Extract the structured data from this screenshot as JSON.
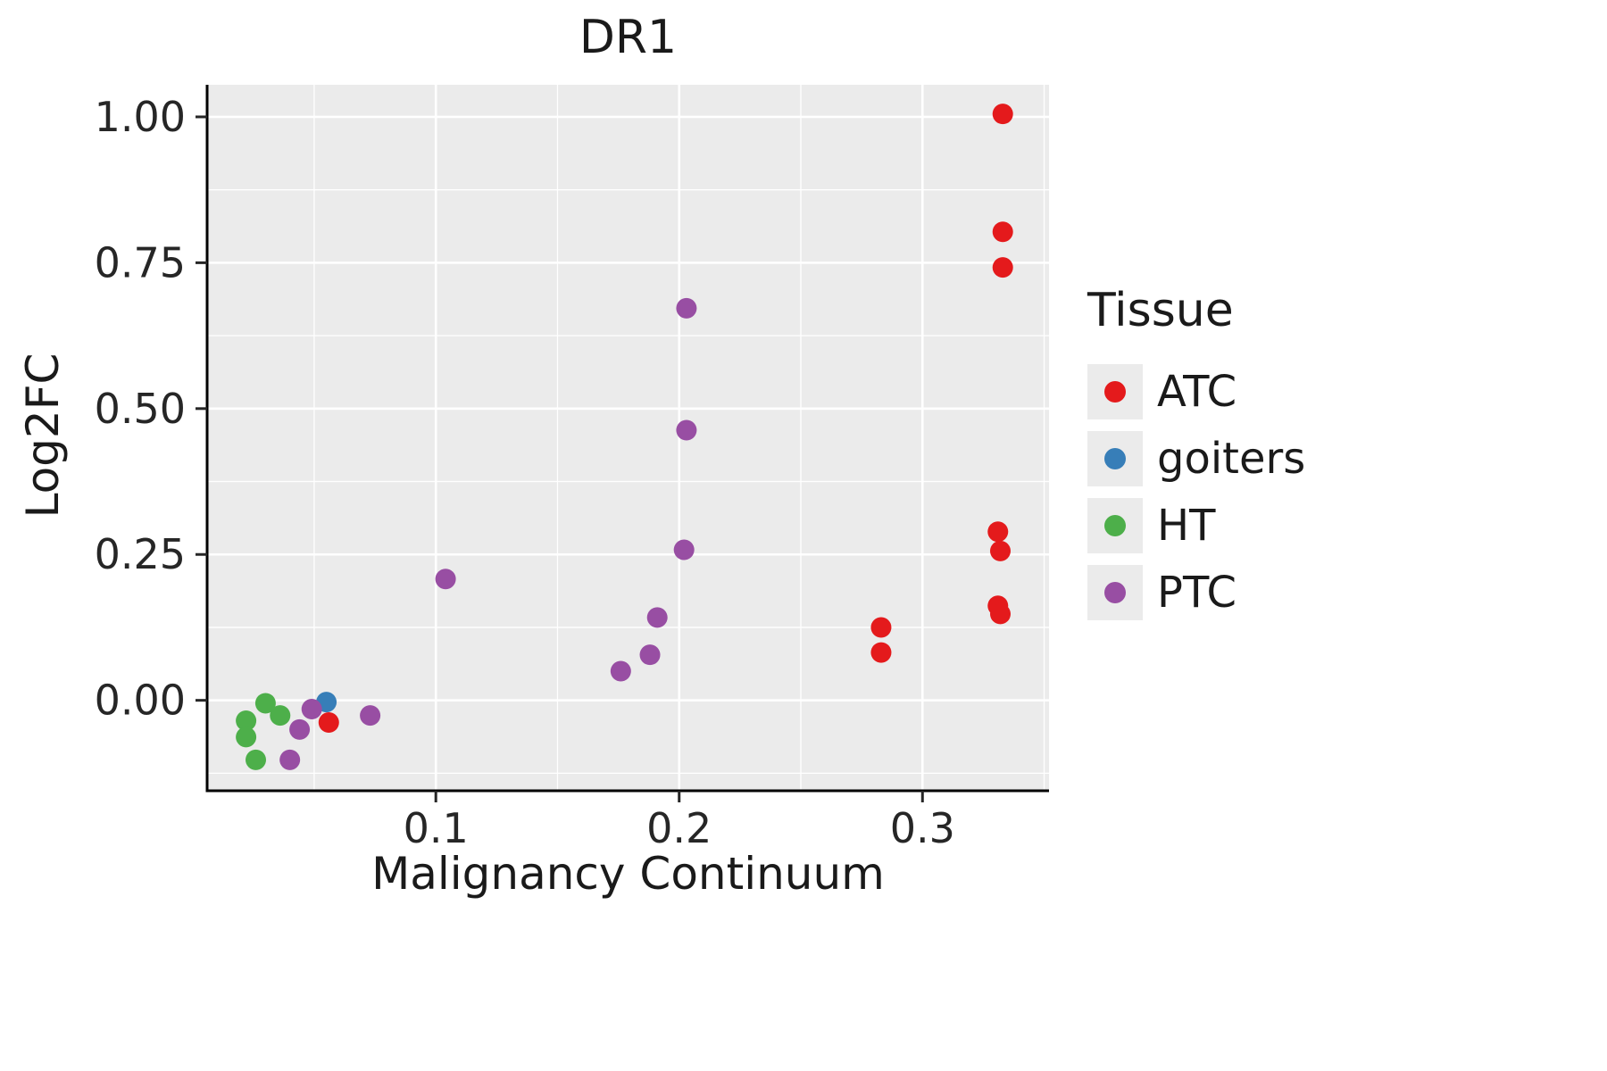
{
  "title": "DR1",
  "axes": {
    "x_label": "Malignancy Continuum",
    "y_label": "Log2FC",
    "x_ticks": [
      0.1,
      0.2,
      0.3
    ],
    "x_tick_labels": [
      "0.1",
      "0.2",
      "0.3"
    ],
    "x_minor_ticks": [
      0.05,
      0.15,
      0.25,
      0.35
    ],
    "y_ticks": [
      0.0,
      0.25,
      0.5,
      0.75,
      1.0
    ],
    "y_tick_labels": [
      "0.00",
      "0.25",
      "0.50",
      "0.75",
      "1.00"
    ],
    "y_minor_ticks": [
      -0.125,
      0.125,
      0.375,
      0.625,
      0.875
    ]
  },
  "legend": {
    "title": "Tissue",
    "entries": [
      {
        "label": "ATC",
        "color": "#E41A1C"
      },
      {
        "label": "goiters",
        "color": "#377EB8"
      },
      {
        "label": "HT",
        "color": "#4DAF4A"
      },
      {
        "label": "PTC",
        "color": "#984EA3"
      }
    ]
  },
  "chart_data": {
    "type": "scatter",
    "title": "DR1",
    "xlabel": "Malignancy Continuum",
    "ylabel": "Log2FC",
    "xlim": [
      0.006,
      0.352
    ],
    "ylim": [
      -0.155,
      1.055
    ],
    "grid": true,
    "legend_position": "right",
    "panel_background": "#EBEBEB",
    "grid_color": "#FFFFFF",
    "point_radius": 11.5,
    "series": [
      {
        "name": "ATC",
        "color": "#E41A1C",
        "points": [
          [
            0.333,
            1.005
          ],
          [
            0.333,
            0.803
          ],
          [
            0.333,
            0.742
          ],
          [
            0.331,
            0.289
          ],
          [
            0.332,
            0.256
          ],
          [
            0.331,
            0.162
          ],
          [
            0.332,
            0.148
          ],
          [
            0.283,
            0.125
          ],
          [
            0.283,
            0.082
          ],
          [
            0.056,
            -0.038
          ]
        ]
      },
      {
        "name": "goiters",
        "color": "#377EB8",
        "points": [
          [
            0.055,
            -0.003
          ]
        ]
      },
      {
        "name": "HT",
        "color": "#4DAF4A",
        "points": [
          [
            0.03,
            -0.005
          ],
          [
            0.022,
            -0.035
          ],
          [
            0.022,
            -0.063
          ],
          [
            0.036,
            -0.026
          ],
          [
            0.026,
            -0.102
          ]
        ]
      },
      {
        "name": "PTC",
        "color": "#984EA3",
        "points": [
          [
            0.104,
            0.208
          ],
          [
            0.203,
            0.672
          ],
          [
            0.203,
            0.463
          ],
          [
            0.202,
            0.258
          ],
          [
            0.191,
            0.142
          ],
          [
            0.188,
            0.078
          ],
          [
            0.176,
            0.05
          ],
          [
            0.049,
            -0.015
          ],
          [
            0.044,
            -0.05
          ],
          [
            0.04,
            -0.102
          ],
          [
            0.073,
            -0.026
          ]
        ]
      }
    ]
  }
}
